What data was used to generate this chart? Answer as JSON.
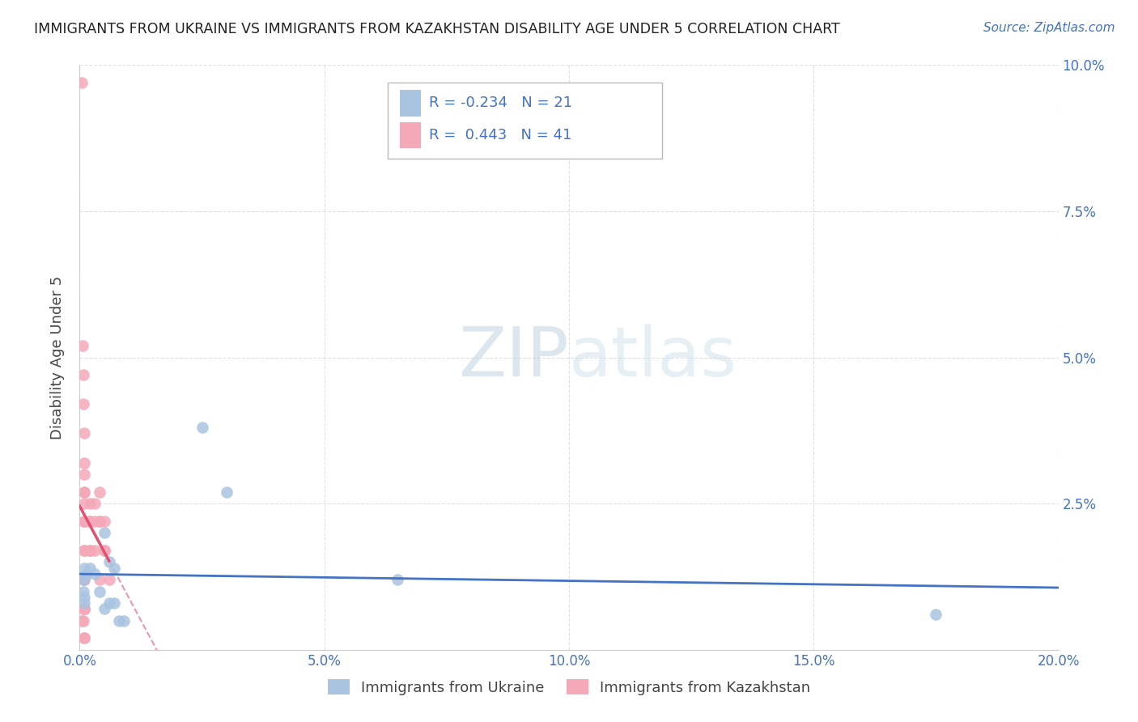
{
  "title": "IMMIGRANTS FROM UKRAINE VS IMMIGRANTS FROM KAZAKHSTAN DISABILITY AGE UNDER 5 CORRELATION CHART",
  "source": "Source: ZipAtlas.com",
  "ylabel_label": "Disability Age Under 5",
  "xlim": [
    0.0,
    0.2
  ],
  "ylim": [
    0.0,
    0.1
  ],
  "xticks": [
    0.0,
    0.05,
    0.1,
    0.15,
    0.2
  ],
  "xtick_labels": [
    "0.0%",
    "5.0%",
    "10.0%",
    "15.0%",
    "20.0%"
  ],
  "yticks": [
    0.0,
    0.025,
    0.05,
    0.075,
    0.1
  ],
  "ytick_labels": [
    "",
    "2.5%",
    "5.0%",
    "7.5%",
    "10.0%"
  ],
  "legend_ukraine": "Immigrants from Ukraine",
  "legend_kazakhstan": "Immigrants from Kazakhstan",
  "ukraine_R": -0.234,
  "ukraine_N": 21,
  "kazakhstan_R": 0.443,
  "kazakhstan_N": 41,
  "ukraine_color": "#a8c4e0",
  "kazakhstan_color": "#f4a8b8",
  "trendline_ukraine_color": "#4472c4",
  "trendline_kazakhstan_color": "#e05070",
  "ukraine_scatter_x": [
    0.0008,
    0.0008,
    0.0009,
    0.001,
    0.001,
    0.0015,
    0.002,
    0.003,
    0.004,
    0.005,
    0.005,
    0.006,
    0.006,
    0.007,
    0.007,
    0.008,
    0.009,
    0.025,
    0.03,
    0.065,
    0.175
  ],
  "ukraine_scatter_y": [
    0.012,
    0.01,
    0.009,
    0.014,
    0.008,
    0.013,
    0.014,
    0.013,
    0.01,
    0.02,
    0.007,
    0.015,
    0.008,
    0.014,
    0.008,
    0.005,
    0.005,
    0.038,
    0.027,
    0.012,
    0.006
  ],
  "kazakhstan_scatter_x": [
    0.0005,
    0.0005,
    0.0006,
    0.0007,
    0.0007,
    0.0008,
    0.0008,
    0.0009,
    0.0009,
    0.001,
    0.001,
    0.001,
    0.001,
    0.001,
    0.001,
    0.001,
    0.001,
    0.001,
    0.001,
    0.001,
    0.001,
    0.001,
    0.001,
    0.001,
    0.001,
    0.002,
    0.002,
    0.002,
    0.002,
    0.002,
    0.003,
    0.003,
    0.003,
    0.004,
    0.004,
    0.004,
    0.004,
    0.005,
    0.005,
    0.005,
    0.006
  ],
  "kazakhstan_scatter_y": [
    0.097,
    0.005,
    0.052,
    0.047,
    0.005,
    0.042,
    0.007,
    0.037,
    0.007,
    0.032,
    0.027,
    0.027,
    0.022,
    0.022,
    0.017,
    0.017,
    0.012,
    0.012,
    0.007,
    0.007,
    0.007,
    0.002,
    0.002,
    0.03,
    0.025,
    0.025,
    0.022,
    0.022,
    0.017,
    0.017,
    0.025,
    0.022,
    0.017,
    0.027,
    0.022,
    0.022,
    0.012,
    0.022,
    0.017,
    0.017,
    0.012
  ],
  "watermark_zip_color": "#b8cfe0",
  "watermark_atlas_color": "#c8dce8",
  "background_color": "#ffffff",
  "grid_color": "#e0e0e0"
}
